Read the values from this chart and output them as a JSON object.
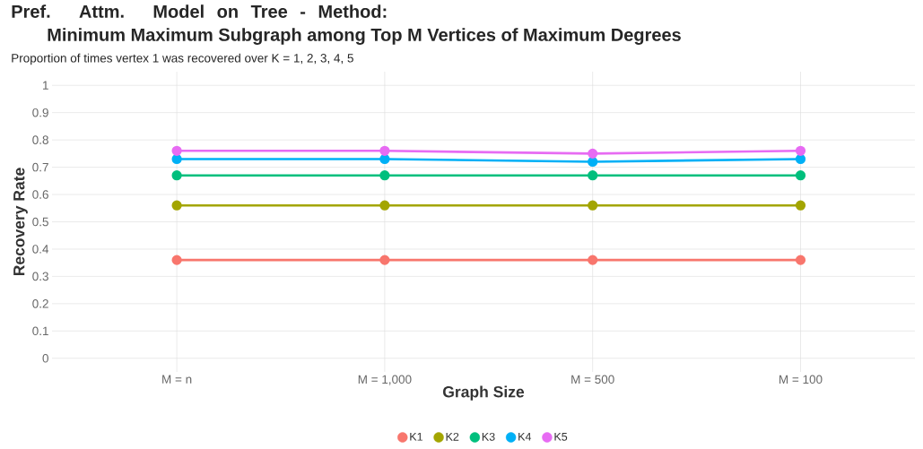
{
  "chart_data": {
    "type": "line",
    "title": "Pref. Attm. Model on Tree - Method: Minimum Maximum Subgraph among Top M Vertices of Maximum Degrees",
    "subtitle": "Proportion of times vertex 1 was recovered over K = 1, 2, 3, 4, 5",
    "xlabel": "Graph Size",
    "ylabel": "Recovery Rate",
    "categories": [
      "M = n",
      "M =  1,000",
      "M = 500",
      "M = 100"
    ],
    "series": [
      {
        "name": "K1",
        "color": "#f8766d",
        "values": [
          0.36,
          0.36,
          0.36,
          0.36
        ]
      },
      {
        "name": "K2",
        "color": "#a3a500",
        "values": [
          0.56,
          0.56,
          0.56,
          0.56
        ]
      },
      {
        "name": "K3",
        "color": "#00bf7d",
        "values": [
          0.67,
          0.67,
          0.67,
          0.67
        ]
      },
      {
        "name": "K4",
        "color": "#00b0f6",
        "values": [
          0.73,
          0.73,
          0.72,
          0.73
        ]
      },
      {
        "name": "K5",
        "color": "#e76bf3",
        "values": [
          0.76,
          0.76,
          0.75,
          0.76
        ]
      }
    ],
    "ylim": [
      -0.05,
      1.05
    ],
    "yticks": [
      0,
      0.1,
      0.2,
      0.3,
      0.4,
      0.5,
      0.6,
      0.7,
      0.8,
      0.9,
      1
    ],
    "grid": true,
    "legend": "bottom",
    "marker": "circle",
    "line_style": "solid"
  }
}
